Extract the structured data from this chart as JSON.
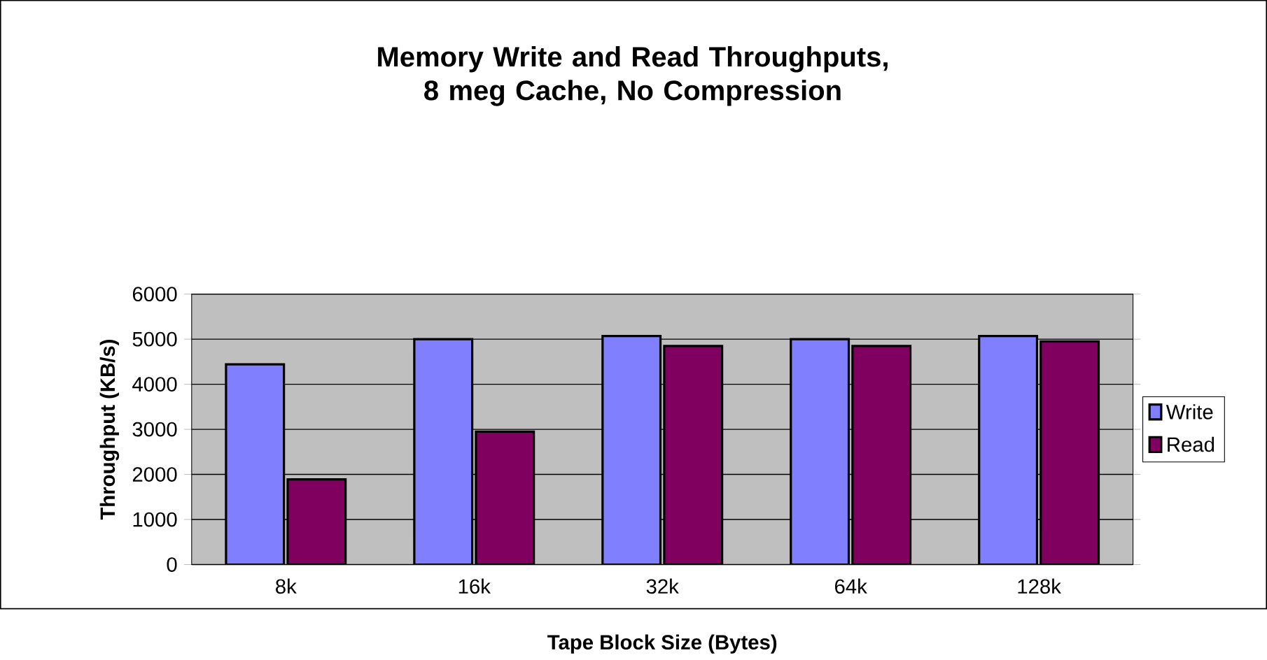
{
  "chart_data": {
    "type": "bar",
    "title": "Memory Write and Read Throughputs, 8 meg Cache, No Compression",
    "xlabel": "Tape Block Size (Bytes)",
    "ylabel": "Throughput (KB/s)",
    "categories": [
      "8k",
      "16k",
      "32k",
      "64k",
      "128k"
    ],
    "series": [
      {
        "name": "Write",
        "color": "#8080ff",
        "values": [
          4440,
          5000,
          5070,
          5000,
          5070
        ]
      },
      {
        "name": "Read",
        "color": "#800060",
        "values": [
          1890,
          2950,
          4850,
          4850,
          4950
        ]
      }
    ],
    "ylim": [
      0,
      6000
    ],
    "yticks": [
      0,
      1000,
      2000,
      3000,
      4000,
      5000,
      6000
    ],
    "grid": "y",
    "legend": "right"
  }
}
